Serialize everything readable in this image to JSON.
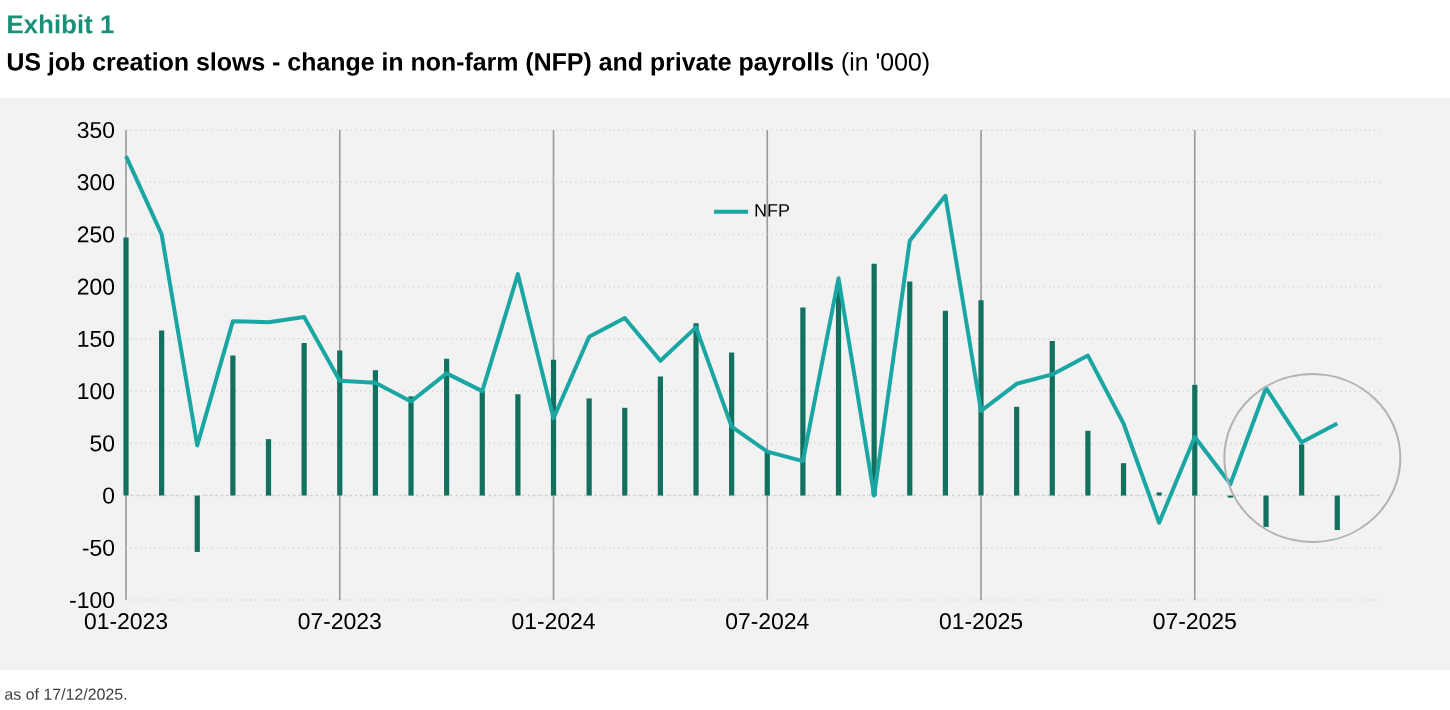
{
  "chart_data": {
    "type": "bar",
    "title": "Exhibit 1",
    "subtitle": "**US job creation slows - change in non-farm (NFP) and private payrolls** (in '000)",
    "categories": [
      "01-2023",
      null,
      null,
      null,
      null,
      null,
      "07-2023",
      null,
      null,
      null,
      null,
      null,
      "01-2024",
      null,
      null,
      null,
      null,
      null,
      "07-2024",
      null,
      null,
      null,
      null,
      null,
      "01-2025",
      null,
      null,
      null,
      null,
      null,
      "07-2025",
      null,
      null,
      null,
      null
    ],
    "series": [
      {
        "color": "#12705e",
        "values": [
          247,
          158,
          -54,
          134,
          54,
          146,
          139,
          120,
          95,
          131,
          100,
          97,
          130,
          93,
          84,
          114,
          165,
          137,
          42,
          180,
          205,
          222,
          205,
          177,
          187,
          85,
          148,
          62,
          31,
          3,
          106,
          -2,
          -30,
          49,
          -33
        ]
      },
      {
        "type": "line",
        "name": "NFP",
        "color": "#1aa6a3",
        "values": [
          325,
          250,
          48,
          167,
          166,
          171,
          110,
          108,
          90,
          117,
          100,
          212,
          74,
          152,
          170,
          129,
          161,
          66,
          42,
          33,
          208,
          0,
          244,
          287,
          81,
          107,
          116,
          134,
          69,
          -26,
          56,
          11,
          103,
          51,
          69
        ]
      }
    ],
    "ylim": [
      -100,
      350
    ],
    "yticks": [
      -100,
      -50,
      0,
      50,
      100,
      150,
      200,
      250,
      300,
      350
    ],
    "grid": true,
    "legend": "top",
    "annotations": [
      "as of 17/12/2025."
    ]
  }
}
